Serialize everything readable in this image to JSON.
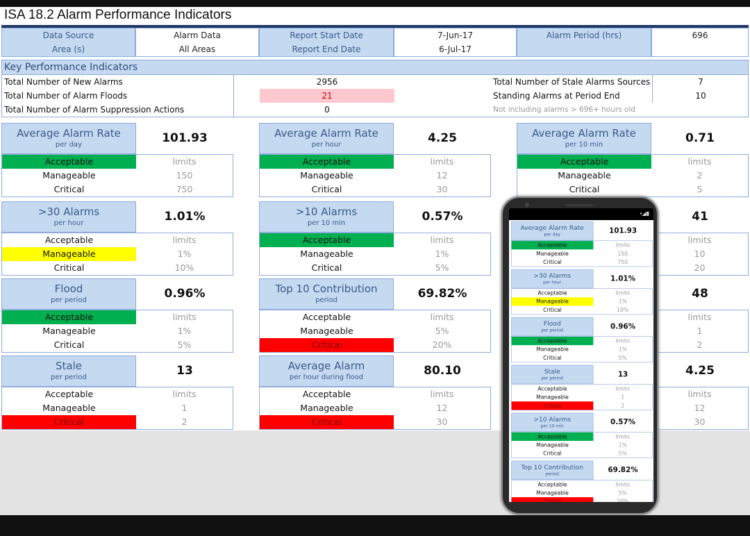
{
  "title": "ISA 18.2 Alarm Performance Indicators",
  "header": {
    "data_source_label": "Data Source",
    "data_source": "Alarm Data",
    "area_label": "Area (s)",
    "area": "All Areas",
    "start_label": "Report Start Date",
    "start": "7-Jun-17",
    "end_label": "Report End Date",
    "end": "6-Jul-17",
    "period_label": "Alarm Period (hrs)",
    "period": "696"
  },
  "kpi": {
    "heading": "Key Performance Indicators",
    "new_alarms_label": "Total Number of New Alarms",
    "new_alarms": "2956",
    "floods_label": "Total Number of Alarm Floods",
    "floods": "21",
    "suppression_label": "Total Number of Alarm Suppression Actions",
    "suppression": "0",
    "stale_sources_label": "Total Number of Stale Alarms Sources",
    "stale_sources": "7",
    "standing_label": "Standing Alarms at Period End",
    "standing": "10",
    "note": "Not including alarms > 696+ hours old"
  },
  "colors": {
    "acceptable": "#00b050",
    "manageable": "#ffff00",
    "critical": "#ff0000",
    "header_blue": "#c5d9f1",
    "flood_highlight": "#ffc7ce"
  },
  "row_labels": [
    "Acceptable",
    "Manageable",
    "Critical"
  ],
  "cards": [
    {
      "title": "Average Alarm Rate",
      "sub": "per day",
      "value": "101.93",
      "limits": [
        "limits",
        "150",
        "750"
      ],
      "status": 0
    },
    {
      "title": "Average Alarm Rate",
      "sub": "per hour",
      "value": "4.25",
      "limits": [
        "limits",
        "12",
        "30"
      ],
      "status": 0
    },
    {
      "title": "Average Alarm Rate",
      "sub": "per 10 min",
      "value": "0.71",
      "limits": [
        "limits",
        "2",
        "5"
      ],
      "status": 0
    },
    {
      "title": ">30 Alarms",
      "sub": "per hour",
      "value": "1.01%",
      "limits": [
        "limits",
        "1%",
        "10%"
      ],
      "status": 1
    },
    {
      "title": ">10 Alarms",
      "sub": "per 10 min",
      "value": "0.57%",
      "limits": [
        "limits",
        "1%",
        "5%"
      ],
      "status": 0
    },
    {
      "title": "",
      "sub": "",
      "value": "41",
      "limits": [
        "limits",
        "10",
        "20"
      ],
      "status": -1
    },
    {
      "title": "Flood",
      "sub": "per period",
      "value": "0.96%",
      "limits": [
        "limits",
        "1%",
        "5%"
      ],
      "status": 0
    },
    {
      "title": "Top 10 Contribution",
      "sub": "period",
      "value": "69.82%",
      "limits": [
        "limits",
        "5%",
        "20%"
      ],
      "status": 2
    },
    {
      "title": "",
      "sub": "",
      "value": "48",
      "limits": [
        "limits",
        "1",
        "2"
      ],
      "status": -1
    },
    {
      "title": "Stale",
      "sub": "per period",
      "value": "13",
      "limits": [
        "limits",
        "1",
        "2"
      ],
      "status": 2
    },
    {
      "title": "Average Alarm",
      "sub": "per hour during flood",
      "value": "80.10",
      "limits": [
        "limits",
        "12",
        "30"
      ],
      "status": 2
    },
    {
      "title": "",
      "sub": "",
      "value": "4.25",
      "limits": [
        "limits",
        "12",
        "30"
      ],
      "status": -1
    }
  ],
  "phone": {
    "cards": [
      0,
      3,
      6,
      9,
      4,
      7
    ]
  }
}
